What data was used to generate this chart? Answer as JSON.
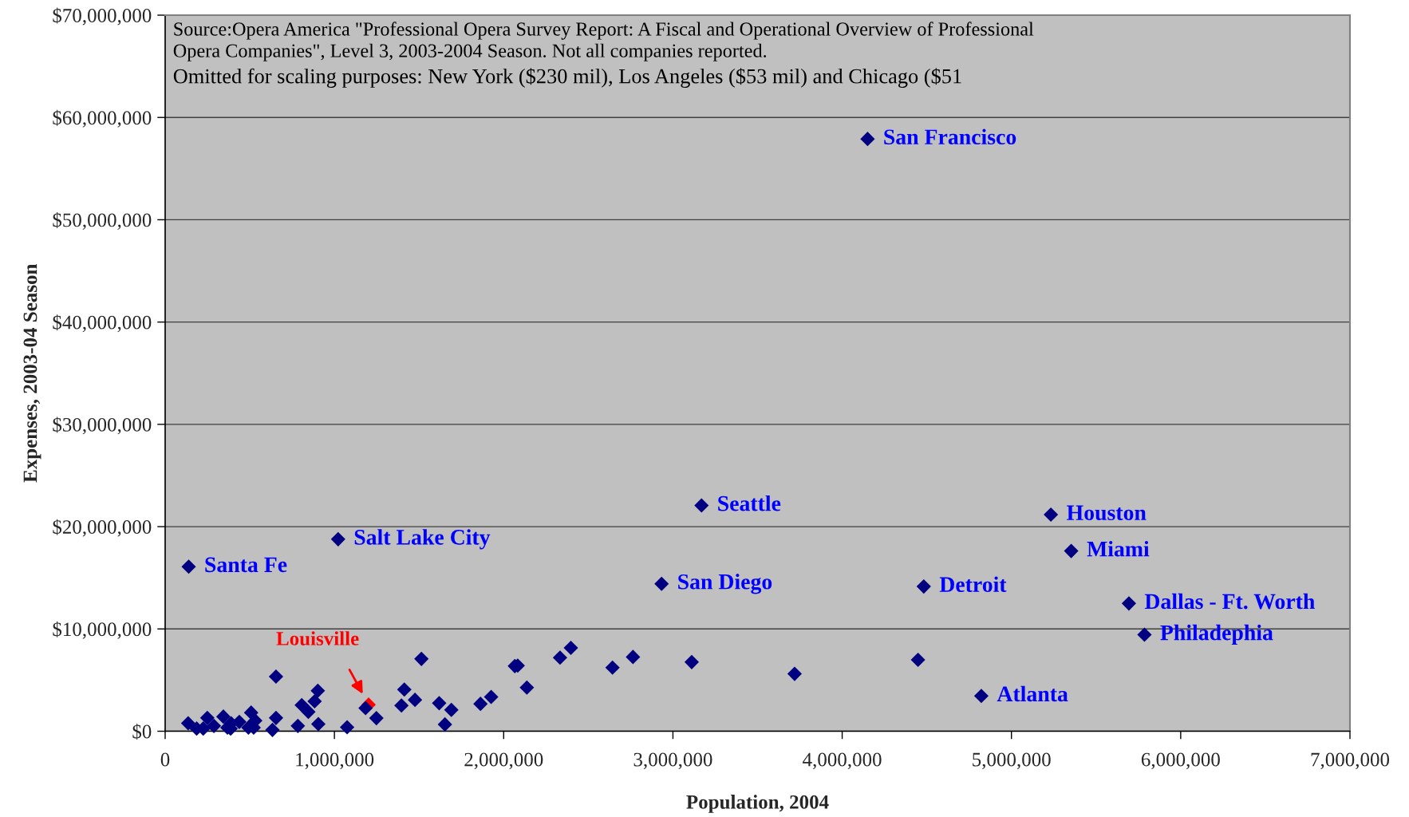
{
  "chart_data": {
    "type": "scatter",
    "xlabel": "Population, 2004",
    "ylabel": "Expenses, 2003-04 Season",
    "series": [
      {
        "name": "Louisville",
        "color": "#ff0000",
        "x": [
          1202000
        ],
        "values": [
          2600000
        ]
      },
      {
        "color": "#000080",
        "x": [
          136000,
          186000,
          225000,
          249000,
          288000,
          344000,
          368000,
          387000,
          390000,
          438000,
          492000,
          508000,
          523000,
          532000,
          655000,
          655000,
          634000,
          784000,
          807000,
          846000,
          883000,
          902000,
          905000,
          1075000,
          1184000,
          1248000,
          1396000,
          1413000,
          1514000,
          1476000,
          1619000,
          1653000,
          1691000,
          1863000,
          1926000,
          2066000,
          2083000,
          2137000,
          2333000,
          2397000,
          2643000,
          2764000,
          3111000,
          3719000,
          4448000,
          4822000,
          139000,
          1022000,
          2933000,
          3169000,
          4482000,
          5233000,
          5353000,
          5694000,
          5786000,
          4150000
        ],
        "values": [
          780000,
          260000,
          260000,
          1300000,
          520000,
          1430000,
          360000,
          260000,
          780000,
          910000,
          360000,
          1820000,
          360000,
          1040000,
          5340000,
          1300000,
          130000,
          520000,
          2550000,
          1900000,
          2920000,
          3960000,
          700000,
          390000,
          2260000,
          1280000,
          2510000,
          4080000,
          7070000,
          3070000,
          2740000,
          670000,
          2090000,
          2680000,
          3350000,
          6370000,
          6420000,
          4270000,
          7200000,
          8150000,
          6220000,
          7260000,
          6760000,
          5610000,
          6980000,
          3450000,
          16090000,
          18770000,
          14410000,
          22070000,
          14150000,
          21170000,
          17620000,
          12490000,
          9440000,
          57900000
        ]
      }
    ],
    "annotations": [
      "Source:Opera America \"Professional Opera Survey Report: A Fiscal and Operational Overview of Professional\nOpera Companies\", Level 3, 2003-2004 Season. Not all companies reported.",
      "Omitted for scaling purposes: New York ($230 mil), Los Angeles ($53 mil) and Chicago ($51",
      {
        "text": "San Francisco",
        "x": 4150000,
        "y": 57900000
      },
      {
        "text": "Seattle",
        "x": 3169000,
        "y": 22070000
      },
      {
        "text": "Houston",
        "x": 5233000,
        "y": 21170000
      },
      {
        "text": "Salt Lake City",
        "x": 1022000,
        "y": 18770000
      },
      {
        "text": "Miami",
        "x": 5353000,
        "y": 17620000
      },
      {
        "text": "Santa Fe",
        "x": 139000,
        "y": 16090000
      },
      {
        "text": "San Diego",
        "x": 2933000,
        "y": 14410000
      },
      {
        "text": "Detroit",
        "x": 4482000,
        "y": 14150000
      },
      {
        "text": "Dallas - Ft. Worth",
        "x": 5694000,
        "y": 12490000
      },
      {
        "text": "Philadephia",
        "x": 5786000,
        "y": 9440000
      },
      {
        "text": "Atlanta",
        "x": 4822000,
        "y": 3450000
      }
    ],
    "xlim": [
      0,
      7000000
    ],
    "xticks": [
      0,
      {
        "value": 1000000,
        "label": "1,000,000"
      },
      {
        "value": 2000000,
        "label": "2,000,000"
      },
      {
        "value": 3000000,
        "label": "3,000,000"
      },
      {
        "value": 4000000,
        "label": "4,000,000"
      },
      {
        "value": 5000000,
        "label": "5,000,000"
      },
      {
        "value": 6000000,
        "label": "6,000,000"
      },
      {
        "value": 7000000,
        "label": "7,000,000"
      }
    ],
    "ylim": [
      0,
      70000000
    ],
    "yticks": [
      {
        "value": 0,
        "label": "$0"
      },
      {
        "value": 10000000,
        "label": "$10,000,000"
      },
      {
        "value": 20000000,
        "label": "$20,000,000"
      },
      {
        "value": 30000000,
        "label": "$30,000,000"
      },
      {
        "value": 40000000,
        "label": "$40,000,000"
      },
      {
        "value": 50000000,
        "label": "$50,000,000"
      },
      {
        "value": 60000000,
        "label": "$60,000,000"
      },
      {
        "value": 70000000,
        "label": "$70,000,000"
      }
    ],
    "grid": "y",
    "marker": "diamond"
  }
}
